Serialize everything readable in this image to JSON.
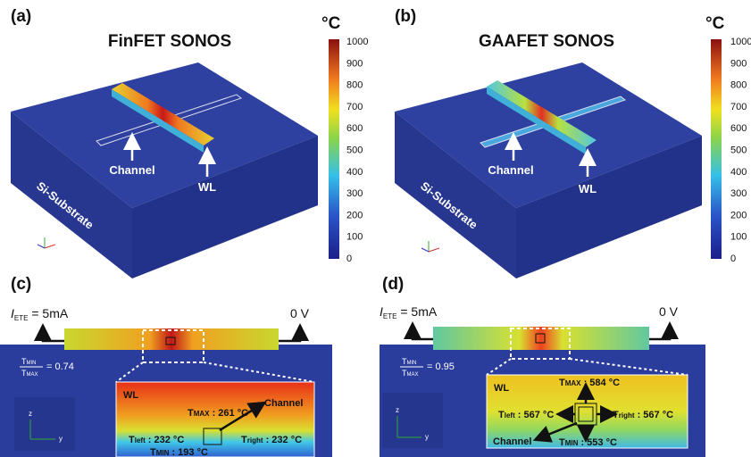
{
  "panels": [
    {
      "label": "(a)",
      "title": "FinFET SONOS",
      "unit": "°C",
      "colorbar_ticks": [
        0,
        100,
        200,
        300,
        400,
        500,
        600,
        700,
        800,
        900,
        1000
      ],
      "annotations": {
        "channel": "Channel",
        "wl": "WL",
        "substrate": "Si-Substrate"
      },
      "axes": {
        "x": "x",
        "y": "y",
        "z": "z"
      }
    },
    {
      "label": "(b)",
      "title": "GAAFET SONOS",
      "unit": "°C",
      "colorbar_ticks": [
        0,
        100,
        200,
        300,
        400,
        500,
        600,
        700,
        800,
        900,
        1000
      ],
      "annotations": {
        "channel": "Channel",
        "wl": "WL",
        "substrate": "Si-Substrate"
      },
      "axes": {
        "x": "x",
        "y": "y",
        "z": "z"
      }
    },
    {
      "label": "(c)",
      "current": {
        "symbol": "I",
        "sub": "ETE",
        "text": " = 5mA"
      },
      "voltage": "0 V",
      "ratio": {
        "num_symbol": "T",
        "num_sub": "MIN",
        "den_symbol": "T",
        "den_sub": "MAX",
        "value": "= 0.74"
      },
      "axes": {
        "y": "y",
        "z": "z"
      },
      "inset": {
        "wl": "WL",
        "channel": "Channel",
        "t_max": {
          "symbol": "T",
          "sub": "MAX",
          "text": " : 261 °C"
        },
        "t_left": {
          "symbol": "T",
          "sub": "left",
          "text": " : 232 °C"
        },
        "t_right": {
          "symbol": "T",
          "sub": "right",
          "text": " : 232 °C"
        },
        "t_min": {
          "symbol": "T",
          "sub": "MIN",
          "text": " : 193 °C"
        }
      }
    },
    {
      "label": "(d)",
      "current": {
        "symbol": "I",
        "sub": "ETE",
        "text": " = 5mA"
      },
      "voltage": "0 V",
      "ratio": {
        "num_symbol": "T",
        "num_sub": "MIN",
        "den_symbol": "T",
        "den_sub": "MAX",
        "value": "= 0.95"
      },
      "axes": {
        "y": "y",
        "z": "z"
      },
      "inset": {
        "wl": "WL",
        "channel": "Channel",
        "t_max": {
          "symbol": "T",
          "sub": "MAX",
          "text": " : 584 °C"
        },
        "t_left": {
          "symbol": "T",
          "sub": "left",
          "text": " : 567 °C"
        },
        "t_right": {
          "symbol": "T",
          "sub": "right",
          "text": " : 567 °C"
        },
        "t_min": {
          "symbol": "T",
          "sub": "MIN",
          "text": " : 553 °C"
        }
      }
    }
  ]
}
